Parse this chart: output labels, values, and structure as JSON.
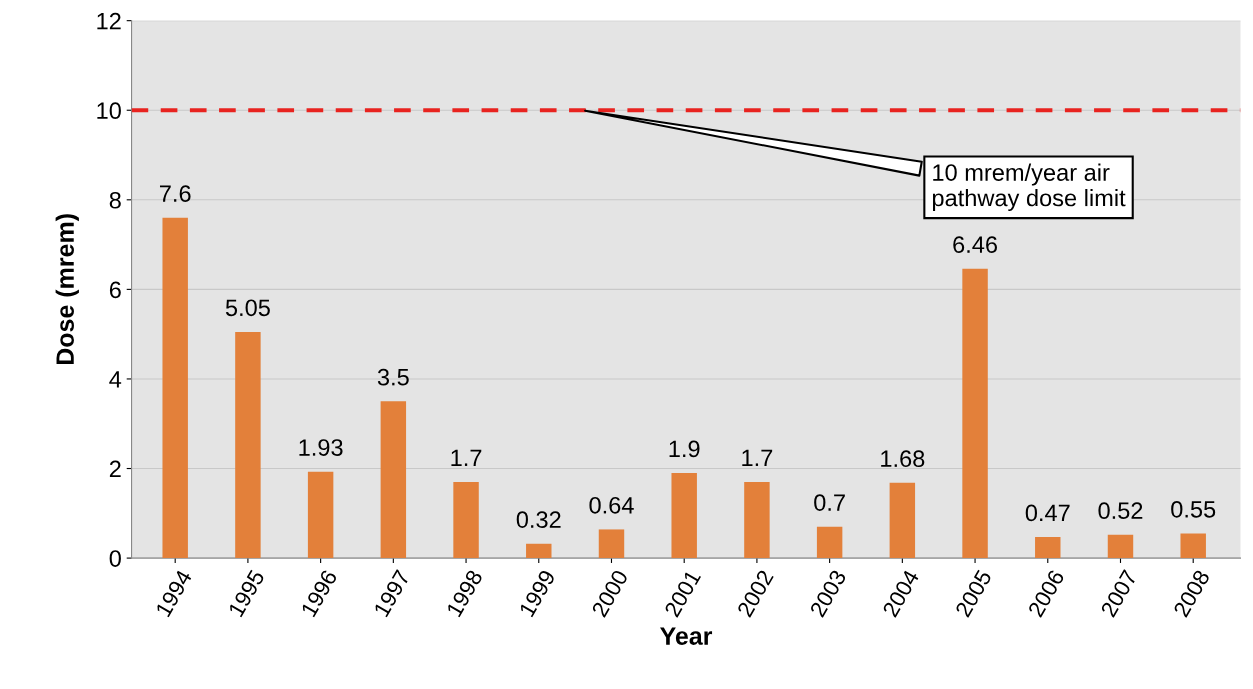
{
  "chart_data": {
    "type": "bar",
    "xlabel": "Year",
    "ylabel": "Dose (mrem)",
    "categories": [
      "1994",
      "1995",
      "1996",
      "1997",
      "1998",
      "1999",
      "2000",
      "2001",
      "2002",
      "2003",
      "2004",
      "2005",
      "2006",
      "2007",
      "2008"
    ],
    "values": [
      7.6,
      5.05,
      1.93,
      3.5,
      1.7,
      0.32,
      0.64,
      1.9,
      1.7,
      0.7,
      1.68,
      6.46,
      0.47,
      0.52,
      0.55
    ],
    "color": "#e3803a",
    "ylim": [
      0,
      12
    ],
    "yticks": [
      0,
      2,
      4,
      6,
      8,
      10,
      12
    ],
    "grid": "y",
    "data_labels": true,
    "ref_lines": [
      {
        "axis": "y",
        "value": 10,
        "label": "10 mrem/year air\npathway dose limit",
        "color": "#e8231f",
        "line_style": "dashed"
      }
    ]
  }
}
